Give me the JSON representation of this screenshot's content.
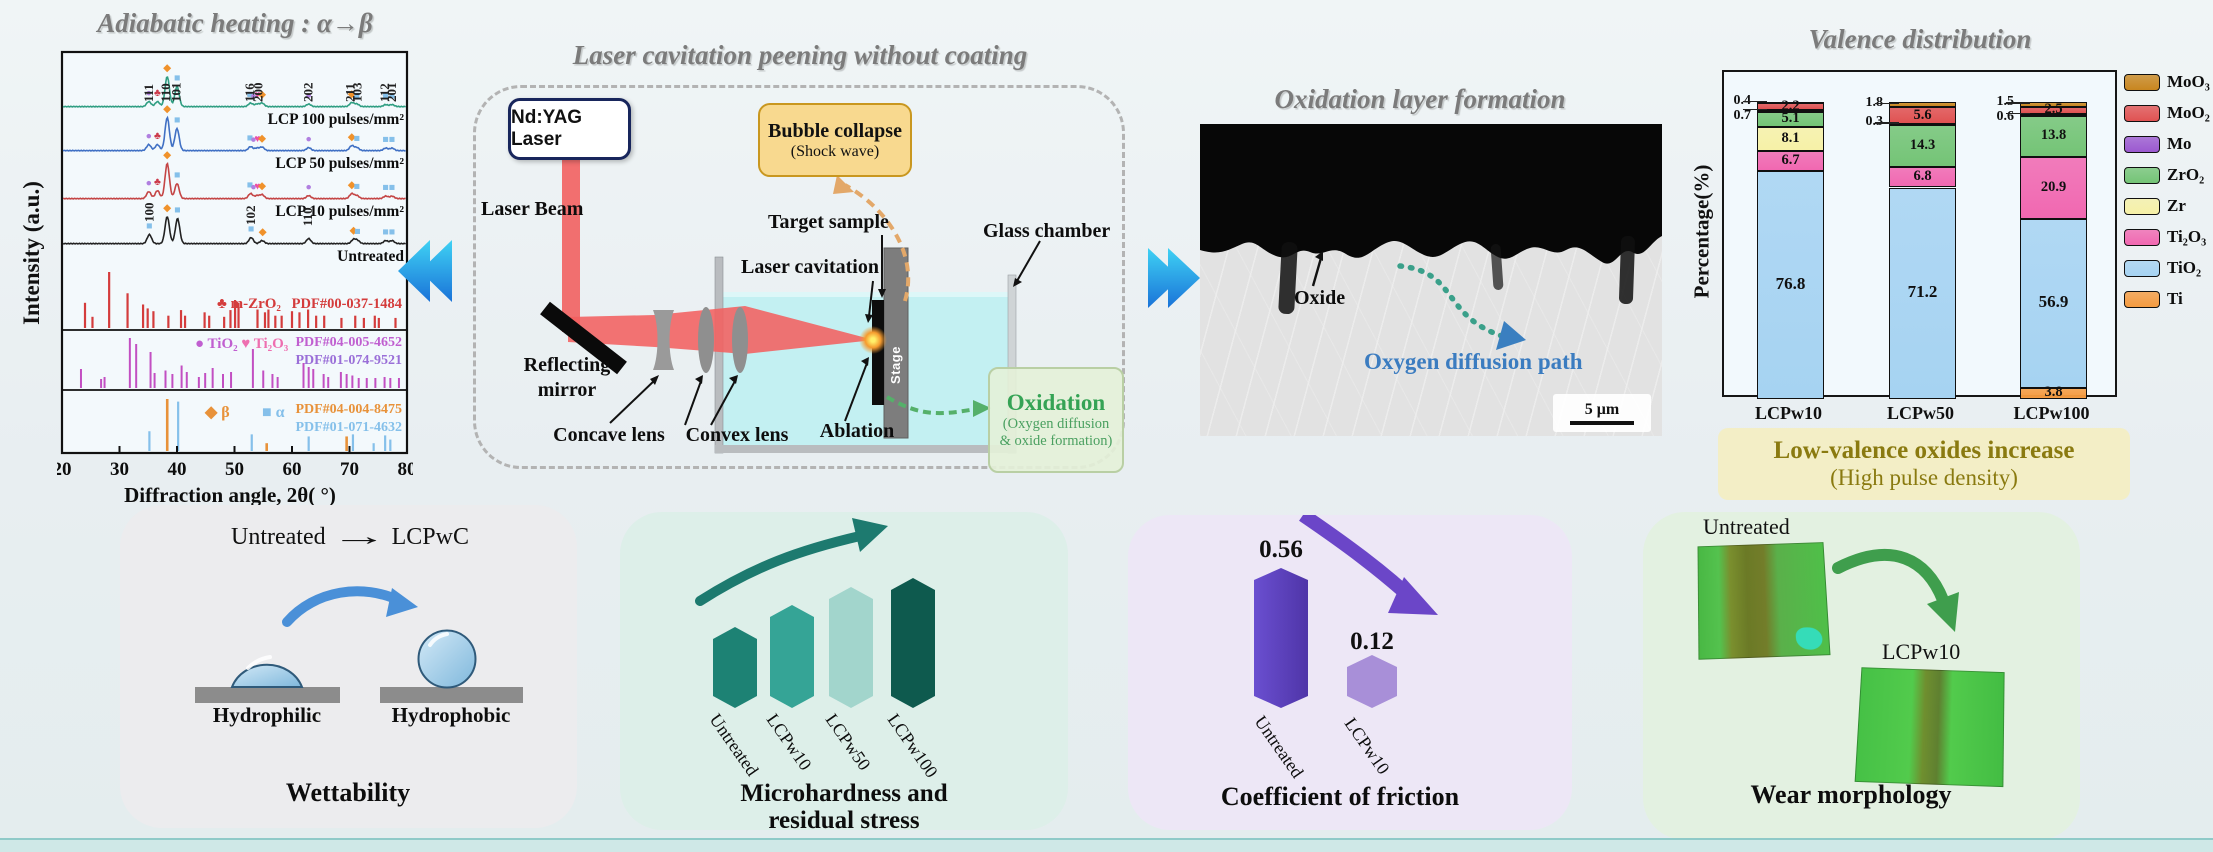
{
  "colors": {
    "chevron_from": "#3fd2f4",
    "chevron_to": "#1a72d8",
    "accent_teal": "#1d7a6f",
    "accent_purple": "#6b46c8",
    "accent_green": "#3f9e4d",
    "accent_blue_arrow": "#4a90d8"
  },
  "xrd": {
    "title": "Adiabatic heating :  α→β",
    "ylabel": "Intensity  (a.u.)",
    "xlabel": "Diffraction angle, 2θ( °)"
  },
  "chart_data": [
    {
      "type": "line",
      "title": "Adiabatic heating: α→β (XRD patterns)",
      "xlabel": "Diffraction angle, 2θ(°)",
      "ylabel": "Intensity (a.u.)",
      "xlim": [
        20,
        80
      ],
      "xticks": [
        20,
        30,
        40,
        50,
        60,
        70,
        80
      ],
      "series": [
        {
          "name": "LCP 100 pulses/mm²",
          "color": "#2f9e82",
          "markers": "treated",
          "peaks": [
            [
              35.1,
              5
            ],
            [
              36.6,
              5
            ],
            [
              38.3,
              30
            ],
            [
              40.0,
              20
            ],
            [
              52.8,
              3.5
            ],
            [
              53.9,
              2.5
            ],
            [
              54.8,
              3.5
            ],
            [
              62.9,
              2.5
            ],
            [
              70.4,
              4
            ],
            [
              71.3,
              2.5
            ],
            [
              76.3,
              2
            ],
            [
              77.4,
              2
            ]
          ]
        },
        {
          "name": "LCP 50 pulses/mm²",
          "color": "#4070c4",
          "markers": "treated",
          "peaks": [
            [
              35.1,
              6
            ],
            [
              36.6,
              6
            ],
            [
              38.3,
              33
            ],
            [
              40.0,
              22
            ],
            [
              52.8,
              4
            ],
            [
              53.9,
              2.5
            ],
            [
              54.8,
              3.5
            ],
            [
              62.9,
              3
            ],
            [
              70.4,
              5
            ],
            [
              71.3,
              3
            ],
            [
              76.3,
              2.5
            ],
            [
              77.4,
              2.5
            ]
          ]
        },
        {
          "name": "LCP 10 pulses/mm²",
          "color": "#c44545",
          "markers": "treated",
          "peaks": [
            [
              35.1,
              7
            ],
            [
              36.6,
              8
            ],
            [
              38.3,
              35
            ],
            [
              40.0,
              15
            ],
            [
              52.8,
              5
            ],
            [
              53.9,
              3
            ],
            [
              54.8,
              4
            ],
            [
              62.9,
              3
            ],
            [
              70.4,
              5
            ],
            [
              71.3,
              3
            ],
            [
              76.3,
              2.5
            ],
            [
              77.4,
              2.5
            ]
          ]
        },
        {
          "name": "Untreated",
          "color": "#222222",
          "markers": "untreated",
          "peaks": [
            [
              35.2,
              9
            ],
            [
              38.3,
              27
            ],
            [
              40.1,
              25
            ],
            [
              52.9,
              6
            ],
            [
              54.8,
              3
            ],
            [
              62.9,
              5
            ],
            [
              70.7,
              4
            ],
            [
              71.4,
              3
            ],
            [
              76.3,
              3
            ],
            [
              77.4,
              3
            ]
          ]
        }
      ],
      "marker_sets": {
        "treated": [
          [
            "●",
            35.1,
            "#b07fe0"
          ],
          [
            "♣",
            36.6,
            "#cc3a4a"
          ],
          [
            "◆",
            38.3,
            "#f0922b"
          ],
          [
            "■",
            40.05,
            "#85c0ea"
          ],
          [
            "■",
            52.7,
            "#85c0ea"
          ],
          [
            "●",
            53.3,
            "#b07fe0"
          ],
          [
            "♥",
            54.0,
            "#ee4fa5"
          ],
          [
            "◆",
            54.8,
            "#f0922b"
          ],
          [
            "●",
            62.9,
            "#b07fe0"
          ],
          [
            "◆",
            70.4,
            "#f0922b"
          ],
          [
            "■",
            71.3,
            "#85c0ea"
          ],
          [
            "■",
            76.3,
            "#85c0ea"
          ],
          [
            "■",
            77.4,
            "#85c0ea"
          ]
        ],
        "untreated": [
          [
            "■",
            35.2,
            "#85c0ea"
          ],
          [
            "◆",
            38.3,
            "#f0922b"
          ],
          [
            "■",
            40.1,
            "#85c0ea"
          ],
          [
            "■",
            52.9,
            "#85c0ea"
          ],
          [
            "◆",
            54.9,
            "#f0922b"
          ],
          [
            "◆",
            70.7,
            "#f0922b"
          ],
          [
            "■",
            71.4,
            "#85c0ea"
          ],
          [
            "■",
            76.3,
            "#85c0ea"
          ],
          [
            "■",
            77.4,
            "#85c0ea"
          ]
        ]
      },
      "peak_labels": [
        {
          "x": 35.1,
          "t": "111"
        },
        {
          "x": 38.1,
          "t": "110"
        },
        {
          "x": 39.9,
          "t": "101"
        },
        {
          "x": 52.7,
          "t": "116"
        },
        {
          "x": 54.2,
          "t": "200"
        },
        {
          "x": 62.9,
          "t": "202"
        },
        {
          "x": 70.2,
          "t": "211"
        },
        {
          "x": 71.4,
          "t": "103"
        },
        {
          "x": 76.2,
          "t": "112"
        },
        {
          "x": 77.4,
          "t": "201"
        }
      ],
      "untreated_peak_labels": [
        {
          "x": 35.2,
          "t": "100"
        },
        {
          "x": 52.9,
          "t": "102"
        },
        {
          "x": 62.8,
          "t": "110"
        }
      ],
      "reference_patterns": [
        {
          "label": "m-ZrO₂",
          "symbol": "♣",
          "pdf": "PDF#00-037-1484",
          "color": "#d43c3c",
          "sticks": [
            [
              24,
              0.45
            ],
            [
              25.3,
              0.2
            ],
            [
              28.2,
              1.0
            ],
            [
              31.4,
              0.62
            ],
            [
              34.1,
              0.42
            ],
            [
              34.9,
              0.35
            ],
            [
              35.9,
              0.3
            ],
            [
              38.5,
              0.22
            ],
            [
              40.7,
              0.32
            ],
            [
              41.4,
              0.22
            ],
            [
              44.8,
              0.28
            ],
            [
              45.6,
              0.22
            ],
            [
              48.2,
              0.2
            ],
            [
              49.3,
              0.32
            ],
            [
              50.1,
              0.5
            ],
            [
              50.7,
              0.45
            ],
            [
              54,
              0.33
            ],
            [
              55.3,
              0.28
            ],
            [
              55.9,
              0.33
            ],
            [
              57.1,
              0.22
            ],
            [
              58.2,
              0.22
            ],
            [
              60,
              0.3
            ],
            [
              61.3,
              0.28
            ],
            [
              62.8,
              0.33
            ],
            [
              64.2,
              0.22
            ],
            [
              65.6,
              0.22
            ],
            [
              68.6,
              0.18
            ],
            [
              71,
              0.22
            ],
            [
              72.5,
              0.18
            ],
            [
              74.4,
              0.22
            ],
            [
              75.1,
              0.18
            ],
            [
              78,
              0.18
            ]
          ]
        },
        {
          "label": "TiO₂",
          "symbol": "●",
          "color": "#c05fd0",
          "pdf": "PDF#04-005-4652",
          "label2": "Ti₂O₃",
          "symbol2": "♥",
          "color2": "#ee6fb0",
          "pdf2": "PDF#01-074-9521",
          "pdf2_color": "#9a6fd8",
          "stick_color": "#c24fc2",
          "sticks": [
            [
              23.3,
              0.38
            ],
            [
              26.8,
              0.18
            ],
            [
              27.4,
              0.22
            ],
            [
              31.8,
              1.0
            ],
            [
              32.9,
              0.88
            ],
            [
              35.4,
              0.72
            ],
            [
              36.1,
              0.3
            ],
            [
              38,
              0.35
            ],
            [
              39.2,
              0.28
            ],
            [
              40.8,
              0.45
            ],
            [
              41.7,
              0.32
            ],
            [
              43.8,
              0.22
            ],
            [
              44.9,
              0.3
            ],
            [
              46.2,
              0.4
            ],
            [
              48,
              0.28
            ],
            [
              49.4,
              0.32
            ],
            [
              53.2,
              0.78
            ],
            [
              55,
              0.35
            ],
            [
              56.6,
              0.28
            ],
            [
              57.5,
              0.22
            ],
            [
              62,
              0.5
            ],
            [
              62.9,
              0.42
            ],
            [
              63.7,
              0.38
            ],
            [
              65.5,
              0.28
            ],
            [
              66.3,
              0.22
            ],
            [
              68.5,
              0.32
            ],
            [
              69.5,
              0.28
            ],
            [
              70.5,
              0.25
            ],
            [
              71.6,
              0.2
            ],
            [
              73,
              0.2
            ],
            [
              74.5,
              0.2
            ],
            [
              76.1,
              0.22
            ],
            [
              77.1,
              0.2
            ],
            [
              78.6,
              0.2
            ]
          ]
        },
        {
          "label": "β",
          "symbol": "◆",
          "color": "#e8923a",
          "pdf": "PDF#04-004-8475",
          "label2": "α",
          "symbol2": "■",
          "color2": "#85c0ea",
          "pdf2": "PDF#01-071-4632",
          "sticks": [
            [
              38.3,
              1.0
            ],
            [
              55.6,
              0.15
            ],
            [
              69.5,
              0.28
            ]
          ],
          "sticks2": [
            [
              35.2,
              0.38
            ],
            [
              40.2,
              0.95
            ],
            [
              53,
              0.32
            ],
            [
              62.9,
              0.28
            ],
            [
              70.6,
              0.32
            ],
            [
              74.2,
              0.15
            ],
            [
              76.2,
              0.3
            ],
            [
              77.1,
              0.22
            ]
          ]
        }
      ]
    },
    {
      "type": "bar",
      "subtype": "stacked",
      "title": "Valence distribution",
      "xlabel": "",
      "ylabel": "Percentage(%)",
      "ylim": [
        0,
        100
      ],
      "legend_position": "right",
      "categories": [
        "LCPw10",
        "LCPw50",
        "LCPw100"
      ],
      "series": [
        {
          "name": "MoO₃",
          "color": "#c8861f",
          "values": [
            0.4,
            1.8,
            1.5
          ]
        },
        {
          "name": "MoO₂",
          "color": "#e05252",
          "values": [
            2.2,
            5.6,
            2.5
          ]
        },
        {
          "name": "Mo",
          "color": "#9b59d0",
          "values": [
            0.7,
            0.3,
            0.6
          ]
        },
        {
          "name": "ZrO₂",
          "color": "#74c476",
          "values": [
            5.1,
            14.3,
            13.8
          ]
        },
        {
          "name": "Zr",
          "color": "#f6f1a7",
          "values": [
            8.1,
            0,
            0
          ]
        },
        {
          "name": "Ti₂O₃",
          "color": "#f168b1",
          "values": [
            6.7,
            6.8,
            20.9
          ]
        },
        {
          "name": "TiO₂",
          "color": "#a6d3f2",
          "values": [
            76.8,
            71.2,
            56.9
          ]
        },
        {
          "name": "Ti",
          "color": "#f59b40",
          "values": [
            0,
            0,
            3.8
          ]
        }
      ]
    }
  ],
  "schematic": {
    "title": "Laser cavitation peening without coating",
    "laser_box": "Nd:YAG Laser",
    "laser_beam": "Laser Beam",
    "reflecting_line1": "Reflecting",
    "reflecting_line2": "mirror",
    "concave": "Concave lens",
    "convex": "Convex lens",
    "ablation": "Ablation",
    "laser_cavitation": "Laser cavitation",
    "target_sample": "Target sample",
    "glass_chamber": "Glass chamber",
    "stage": "Stage",
    "bubble_line1": "Bubble collapse",
    "bubble_line2": "(Shock wave)",
    "oxidation_line1": "Oxidation",
    "oxidation_line2": "(Oxygen diffusion",
    "oxidation_line3": "& oxide formation)"
  },
  "sem": {
    "title": "Oxidation layer formation",
    "oxide_label": "Oxide",
    "path_label": "Oxygen diffusion path",
    "scale_label": "5 μm"
  },
  "valence": {
    "title": "Valence distribution",
    "ylabel": "Percentage(%)",
    "note_line1": "Low-valence oxides increase",
    "note_line2": "(High pulse density)"
  },
  "panels": {
    "wettability": {
      "flow_from": "Untreated",
      "flow_arrow": "→",
      "flow_to": "LCPwC",
      "left_label": "Hydrophilic",
      "right_label": "Hydrophobic",
      "caption": "Wettability"
    },
    "hardness": {
      "bars": [
        {
          "label": "Untreated",
          "color": "#1d8274"
        },
        {
          "label": "LCPw10",
          "color": "#35a496"
        },
        {
          "label": "LCPw50",
          "color": "#a2d5cc"
        },
        {
          "label": "LCPw100",
          "color": "#0e5a4e"
        }
      ],
      "caption_line1": "Microhardness and",
      "caption_line2": "residual stress"
    },
    "friction": {
      "bars": [
        {
          "label": "Untreated",
          "value": "0.56"
        },
        {
          "label": "LCPw10",
          "value": "0.12"
        }
      ],
      "caption": "Coefficient of friction"
    },
    "wear": {
      "top_label": "Untreated",
      "bottom_label": "LCPw10",
      "caption": "Wear morphology"
    }
  }
}
